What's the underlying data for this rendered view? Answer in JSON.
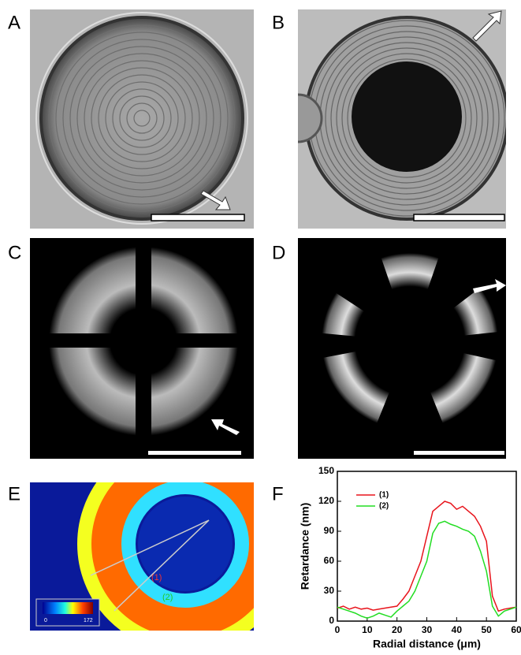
{
  "panels": {
    "a": "A",
    "b": "B",
    "c": "C",
    "d": "D",
    "e": "E",
    "f": "F"
  },
  "panel_e": {
    "line_labels": [
      "(1)",
      "(2)"
    ],
    "colorbar_labels": [
      "0",
      "172"
    ]
  },
  "chart_data": {
    "type": "line",
    "xlabel": "Radial distance (μm)",
    "ylabel": "Retardance (nm)",
    "x": [
      0,
      2,
      4,
      6,
      8,
      10,
      12,
      14,
      16,
      18,
      20,
      22,
      24,
      26,
      28,
      30,
      32,
      34,
      36,
      38,
      40,
      42,
      44,
      46,
      48,
      50,
      52,
      54,
      56,
      58,
      60
    ],
    "series": [
      {
        "name": "(1)",
        "color": "#e8141c",
        "values": [
          13,
          15,
          12,
          14,
          12,
          13,
          11,
          12,
          13,
          14,
          15,
          22,
          30,
          45,
          60,
          85,
          110,
          115,
          120,
          118,
          112,
          115,
          110,
          105,
          95,
          80,
          25,
          10,
          12,
          13,
          14
        ]
      },
      {
        "name": "(2)",
        "color": "#22dd22",
        "values": [
          14,
          12,
          10,
          8,
          5,
          3,
          5,
          8,
          6,
          4,
          10,
          15,
          20,
          30,
          45,
          60,
          88,
          98,
          100,
          97,
          95,
          92,
          90,
          85,
          70,
          50,
          15,
          5,
          10,
          12,
          14
        ]
      }
    ],
    "xlim": [
      0,
      60
    ],
    "xticks": [
      0,
      10,
      20,
      30,
      40,
      50,
      60
    ],
    "ylim": [
      0,
      150
    ],
    "yticks": [
      0,
      30,
      60,
      90,
      120,
      150
    ]
  }
}
